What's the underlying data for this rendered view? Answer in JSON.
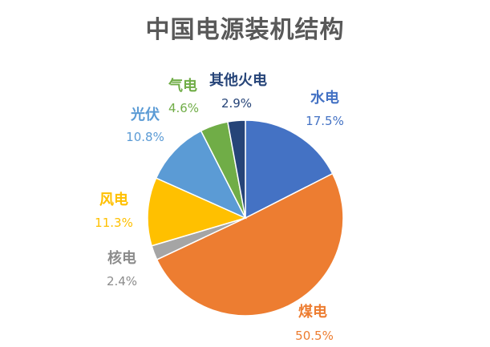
{
  "chart_data": {
    "type": "pie",
    "title": "中国电源装机结构",
    "slices": [
      {
        "name": "水电",
        "value": 17.5,
        "label": "17.5%",
        "color": "#4472C4",
        "label_color": "#4472C4"
      },
      {
        "name": "煤电",
        "value": 50.5,
        "label": "50.5%",
        "color": "#ED7D31",
        "label_color": "#ED7D31"
      },
      {
        "name": "核电",
        "value": 2.4,
        "label": "2.4%",
        "color": "#A5A5A5",
        "label_color": "#8C8C8C"
      },
      {
        "name": "风电",
        "value": 11.3,
        "label": "11.3%",
        "color": "#FFC000",
        "label_color": "#FFC000"
      },
      {
        "name": "光伏",
        "value": 10.8,
        "label": "10.8%",
        "color": "#5B9BD5",
        "label_color": "#5B9BD5"
      },
      {
        "name": "气电",
        "value": 4.6,
        "label": "4.6%",
        "color": "#70AD47",
        "label_color": "#70AD47"
      },
      {
        "name": "其他火电",
        "value": 2.9,
        "label": "2.9%",
        "color": "#264478",
        "label_color": "#264478"
      }
    ]
  }
}
